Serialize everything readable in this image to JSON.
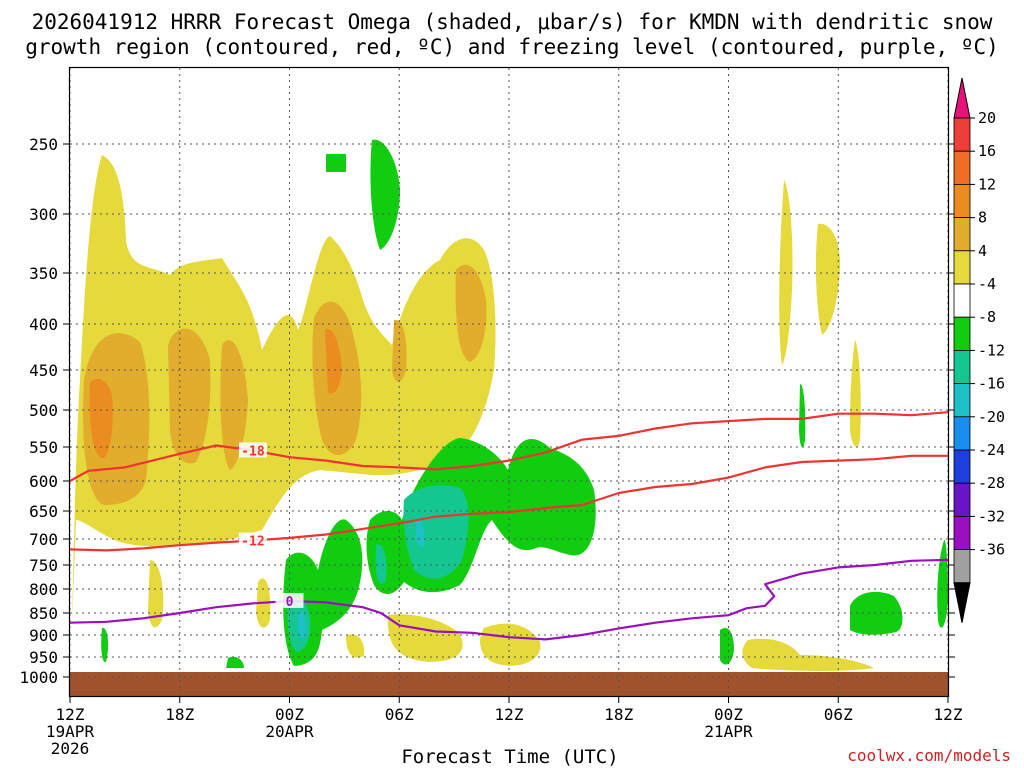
{
  "chart_data": {
    "type": "heatmap",
    "title_line1": "2026041912 HRRR Forecast Omega (shaded, μbar/s) for KMDN with dendritic snow",
    "title_line2": "growth region (contoured, red, ºC) and freezing level (contoured, purple, ºC)",
    "xlabel": "Forecast Time (UTC)",
    "credit": "coolwx.com/models",
    "x_range_hours": [
      0,
      48
    ],
    "x_ticks": [
      {
        "h": 0,
        "label": "12Z",
        "sub1": "19APR",
        "sub2": "2026"
      },
      {
        "h": 6,
        "label": "18Z"
      },
      {
        "h": 12,
        "label": "00Z",
        "sub1": "20APR"
      },
      {
        "h": 18,
        "label": "06Z"
      },
      {
        "h": 24,
        "label": "12Z"
      },
      {
        "h": 30,
        "label": "18Z"
      },
      {
        "h": 36,
        "label": "00Z",
        "sub1": "21APR"
      },
      {
        "h": 42,
        "label": "06Z"
      },
      {
        "h": 48,
        "label": "12Z"
      }
    ],
    "y_ticks": [
      250,
      300,
      350,
      400,
      450,
      500,
      550,
      600,
      650,
      700,
      750,
      800,
      850,
      900,
      950,
      1000
    ],
    "colorbar": {
      "labels": [
        "20",
        "16",
        "12",
        "8",
        "4",
        "-4",
        "-8",
        "-12",
        "-16",
        "-20",
        "-24",
        "-28",
        "-32",
        "-36"
      ],
      "colors": [
        "#e8117b",
        "#ef3e3a",
        "#f06d25",
        "#ec8b1f",
        "#e2ad2c",
        "#e5d93c",
        "#ffffff",
        "#10cd10",
        "#14c68f",
        "#1ec0c8",
        "#1a8ef0",
        "#1e3edd",
        "#6a14c8",
        "#9a0fc0",
        "#a0a0a0",
        "#000000"
      ]
    },
    "contours": [
      {
        "label": "-18",
        "color": "#ee3333",
        "points": [
          [
            0,
            600
          ],
          [
            1,
            585
          ],
          [
            3,
            580
          ],
          [
            6,
            560
          ],
          [
            8,
            548
          ],
          [
            10,
            555
          ],
          [
            12,
            565
          ],
          [
            14,
            570
          ],
          [
            16,
            578
          ],
          [
            18,
            580
          ],
          [
            20,
            583
          ],
          [
            22,
            578
          ],
          [
            24,
            570
          ],
          [
            26,
            558
          ],
          [
            28,
            540
          ],
          [
            30,
            535
          ],
          [
            32,
            525
          ],
          [
            34,
            518
          ],
          [
            36,
            515
          ],
          [
            38,
            512
          ],
          [
            40,
            512
          ],
          [
            42,
            505
          ],
          [
            44,
            505
          ],
          [
            46,
            507
          ],
          [
            48,
            503
          ]
        ]
      },
      {
        "label": "-12",
        "color": "#ee3333",
        "points": [
          [
            0,
            720
          ],
          [
            2,
            722
          ],
          [
            4,
            718
          ],
          [
            6,
            712
          ],
          [
            8,
            707
          ],
          [
            10,
            703
          ],
          [
            12,
            698
          ],
          [
            14,
            692
          ],
          [
            16,
            682
          ],
          [
            18,
            672
          ],
          [
            20,
            660
          ],
          [
            22,
            655
          ],
          [
            24,
            652
          ],
          [
            26,
            645
          ],
          [
            28,
            640
          ],
          [
            30,
            620
          ],
          [
            32,
            610
          ],
          [
            34,
            605
          ],
          [
            36,
            595
          ],
          [
            38,
            580
          ],
          [
            40,
            572
          ],
          [
            42,
            570
          ],
          [
            44,
            568
          ],
          [
            46,
            563
          ],
          [
            48,
            563
          ]
        ]
      },
      {
        "label": "0",
        "color": "#9911bb",
        "points": [
          [
            0,
            872
          ],
          [
            2,
            870
          ],
          [
            4,
            862
          ],
          [
            6,
            850
          ],
          [
            8,
            838
          ],
          [
            10,
            830
          ],
          [
            12,
            825
          ],
          [
            14,
            828
          ],
          [
            16,
            838
          ],
          [
            17,
            850
          ],
          [
            18,
            878
          ],
          [
            20,
            892
          ],
          [
            22,
            895
          ],
          [
            24,
            905
          ],
          [
            26,
            910
          ],
          [
            28,
            900
          ],
          [
            30,
            885
          ],
          [
            32,
            872
          ],
          [
            34,
            862
          ],
          [
            36,
            855
          ],
          [
            37,
            840
          ],
          [
            38,
            835
          ],
          [
            38.5,
            815
          ],
          [
            38,
            790
          ],
          [
            40,
            768
          ],
          [
            42,
            755
          ],
          [
            44,
            750
          ],
          [
            46,
            742
          ],
          [
            48,
            740
          ]
        ]
      }
    ]
  }
}
